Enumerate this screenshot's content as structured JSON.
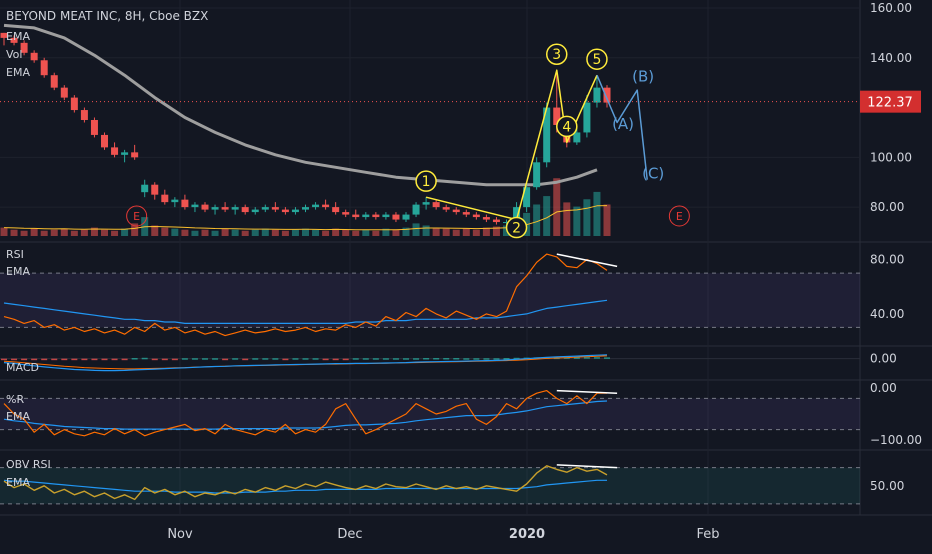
{
  "symbol_title": "BEYOND MEAT INC, 8H, Cboe BZX",
  "legend": {
    "main": [
      "EMA",
      "Vol",
      "EMA"
    ],
    "rsi": [
      "RSI",
      "EMA"
    ],
    "macd": [
      "MACD"
    ],
    "wr": [
      "%R",
      "EMA"
    ],
    "obv": [
      "OBV RSI",
      "EMA"
    ]
  },
  "price_badge": "122.37",
  "earnings_marker": "E",
  "colors": {
    "background": "#131722",
    "up": "#26a69a",
    "down": "#ef5350",
    "ema_grey": "#9e9e9e",
    "wave_yellow": "#ffeb3b",
    "wave_blue": "#5b9bd5",
    "rsi_orange": "#ff6d00",
    "ema_blue": "#2196f3",
    "obv_gold": "#c8a02c",
    "badge_red": "#d32f2f",
    "earnings_red": "#e53935"
  },
  "chart_data": [
    {
      "type": "candlestick",
      "title": "BEYOND MEAT INC, 8H, Cboe BZX",
      "x_ticks": [
        "Nov",
        "Dec",
        "2020",
        "Feb"
      ],
      "y_ticks": [
        "160.00",
        "140.00",
        "100.00",
        "80.00"
      ],
      "ylim": [
        70,
        160
      ],
      "last_price": 122.37,
      "wave_labels": [
        {
          "label": "1",
          "x": 42,
          "y": 84
        },
        {
          "label": "2",
          "x": 51,
          "y": 75
        },
        {
          "label": "3",
          "x": 55,
          "y": 135
        },
        {
          "label": "4",
          "x": 56,
          "y": 106
        },
        {
          "label": "5",
          "x": 59,
          "y": 133
        },
        {
          "label": "(A)",
          "x": 61,
          "y": 109
        },
        {
          "label": "(B)",
          "x": 63,
          "y": 128
        },
        {
          "label": "(C)",
          "x": 64,
          "y": 89
        }
      ],
      "wave_path": [
        [
          42,
          84
        ],
        [
          51,
          75
        ],
        [
          55,
          135
        ],
        [
          56,
          106
        ],
        [
          59,
          133
        ]
      ],
      "projection_path": [
        [
          59,
          133
        ],
        [
          61,
          114
        ],
        [
          63,
          127
        ],
        [
          64,
          91
        ]
      ],
      "earnings_x": [
        13,
        67
      ],
      "ema_200": [
        [
          0,
          153
        ],
        [
          3,
          152
        ],
        [
          6,
          148
        ],
        [
          9,
          141
        ],
        [
          12,
          133
        ],
        [
          15,
          124
        ],
        [
          18,
          116
        ],
        [
          21,
          110
        ],
        [
          24,
          105
        ],
        [
          27,
          101
        ],
        [
          30,
          98
        ],
        [
          33,
          96
        ],
        [
          36,
          94
        ],
        [
          39,
          92
        ],
        [
          42,
          91
        ],
        [
          45,
          90
        ],
        [
          48,
          89
        ],
        [
          51,
          89
        ],
        [
          53,
          89
        ],
        [
          55,
          90
        ],
        [
          57,
          92
        ],
        [
          59,
          95
        ]
      ],
      "candles": [
        [
          150,
          150,
          145,
          148
        ],
        [
          148,
          149,
          145,
          146
        ],
        [
          146,
          147,
          141,
          142
        ],
        [
          142,
          143,
          138,
          139
        ],
        [
          139,
          140,
          132,
          133
        ],
        [
          133,
          134,
          127,
          128
        ],
        [
          128,
          129,
          123,
          124
        ],
        [
          124,
          125,
          118,
          119
        ],
        [
          119,
          120,
          114,
          115
        ],
        [
          115,
          116,
          108,
          109
        ],
        [
          109,
          110,
          103,
          104
        ],
        [
          104,
          106,
          100,
          101
        ],
        [
          101,
          103,
          98,
          102
        ],
        [
          102,
          105,
          99,
          100
        ],
        [
          86,
          91,
          84,
          89
        ],
        [
          89,
          90,
          83,
          85
        ],
        [
          85,
          87,
          81,
          82
        ],
        [
          82,
          84,
          80,
          83
        ],
        [
          83,
          85,
          79,
          80
        ],
        [
          80,
          82,
          78,
          81
        ],
        [
          81,
          82,
          78,
          79
        ],
        [
          79,
          81,
          77,
          80
        ],
        [
          80,
          82,
          78,
          79
        ],
        [
          79,
          81,
          77,
          80
        ],
        [
          80,
          81,
          77,
          78
        ],
        [
          78,
          80,
          77,
          79
        ],
        [
          79,
          81,
          78,
          80
        ],
        [
          80,
          82,
          78,
          79
        ],
        [
          79,
          80,
          77,
          78
        ],
        [
          78,
          80,
          77,
          79
        ],
        [
          79,
          81,
          78,
          80
        ],
        [
          80,
          82,
          79,
          81
        ],
        [
          81,
          83,
          79,
          80
        ],
        [
          80,
          82,
          77,
          78
        ],
        [
          78,
          79,
          76,
          77
        ],
        [
          77,
          79,
          75,
          76
        ],
        [
          76,
          78,
          75,
          77
        ],
        [
          77,
          78,
          75,
          76
        ],
        [
          76,
          78,
          75,
          77
        ],
        [
          77,
          78,
          74,
          75
        ],
        [
          75,
          78,
          74,
          77
        ],
        [
          77,
          82,
          76,
          81
        ],
        [
          81,
          84,
          79,
          82
        ],
        [
          82,
          83,
          79,
          80
        ],
        [
          80,
          81,
          78,
          79
        ],
        [
          79,
          80,
          77,
          78
        ],
        [
          78,
          79,
          76,
          77
        ],
        [
          77,
          78,
          75,
          76
        ],
        [
          76,
          77,
          74,
          75
        ],
        [
          75,
          76,
          73,
          74
        ],
        [
          74,
          75,
          72,
          74
        ],
        [
          74,
          82,
          73,
          80
        ],
        [
          80,
          90,
          78,
          88
        ],
        [
          88,
          100,
          87,
          98
        ],
        [
          98,
          122,
          96,
          120
        ],
        [
          120,
          135,
          110,
          113
        ],
        [
          113,
          114,
          104,
          106
        ],
        [
          106,
          112,
          105,
          110
        ],
        [
          110,
          125,
          108,
          122
        ],
        [
          122,
          133,
          120,
          128
        ],
        [
          128,
          129,
          120,
          122
        ]
      ],
      "volume": [
        8,
        6,
        5,
        7,
        5,
        6,
        7,
        5,
        6,
        8,
        6,
        5,
        7,
        12,
        18,
        10,
        8,
        7,
        6,
        5,
        6,
        5,
        7,
        6,
        5,
        6,
        7,
        6,
        5,
        6,
        7,
        6,
        5,
        7,
        6,
        5,
        6,
        5,
        7,
        6,
        8,
        12,
        10,
        8,
        7,
        6,
        7,
        6,
        8,
        9,
        10,
        14,
        22,
        30,
        38,
        55,
        32,
        28,
        35,
        42,
        30
      ]
    },
    {
      "type": "line",
      "title": "RSI",
      "y_ticks": [
        "80.00",
        "40.00"
      ],
      "ylim": [
        20,
        90
      ],
      "levels": [
        70,
        30
      ],
      "series": [
        {
          "name": "RSI",
          "values": [
            38,
            36,
            33,
            35,
            30,
            32,
            28,
            30,
            27,
            29,
            26,
            28,
            25,
            30,
            27,
            33,
            28,
            30,
            26,
            28,
            25,
            27,
            24,
            26,
            28,
            26,
            27,
            29,
            27,
            28,
            30,
            27,
            29,
            28,
            32,
            30,
            34,
            31,
            38,
            35,
            41,
            38,
            44,
            40,
            37,
            42,
            39,
            36,
            40,
            38,
            42,
            60,
            68,
            78,
            84,
            82,
            75,
            74,
            80,
            77,
            72
          ]
        },
        {
          "name": "EMA",
          "values": [
            48,
            47,
            46,
            45,
            44,
            43,
            42,
            41,
            40,
            39,
            38,
            37,
            36,
            36,
            35,
            35,
            34,
            34,
            33,
            33,
            33,
            33,
            33,
            33,
            33,
            33,
            33,
            33,
            33,
            33,
            33,
            33,
            33,
            33,
            33,
            34,
            34,
            34,
            35,
            35,
            35,
            36,
            36,
            36,
            36,
            36,
            36,
            37,
            37,
            37,
            38,
            39,
            40,
            42,
            44,
            45,
            46,
            47,
            48,
            49,
            50
          ]
        }
      ],
      "divergence_line": [
        [
          55,
          84
        ],
        [
          61,
          75
        ]
      ]
    },
    {
      "type": "histogram",
      "title": "MACD",
      "y_ticks": [
        "0.00"
      ],
      "ylim": [
        -8,
        4
      ],
      "histogram": [
        -0.6,
        -0.5,
        -0.6,
        -0.5,
        -0.4,
        -0.5,
        -0.4,
        -0.3,
        -0.4,
        -0.3,
        -0.2,
        -0.3,
        -0.2,
        0.3,
        0.4,
        -0.2,
        -0.3,
        -0.4,
        0.2,
        0.2,
        0.2,
        0.2,
        -0.2,
        0.2,
        -0.2,
        0.2,
        0.2,
        0.2,
        -0.2,
        0.2,
        0.2,
        0.2,
        -0.2,
        -0.2,
        -0.2,
        0.2,
        0.2,
        0.2,
        0.2,
        0.2,
        0.2,
        0.2,
        0.3,
        0.3,
        0.3,
        0.3,
        0.2,
        0.2,
        0.2,
        0.2,
        0.3,
        0.4,
        0.5,
        0.6,
        0.6,
        0.5,
        0.6,
        0.6,
        0.7,
        0.7,
        0.6
      ],
      "macd": [
        -1.8,
        -2.2,
        -2.8,
        -3.3,
        -3.8,
        -4.2,
        -4.6,
        -5.0,
        -5.2,
        -5.4,
        -5.5,
        -5.5,
        -5.4,
        -5.2,
        -5.0,
        -4.8,
        -4.6,
        -4.4,
        -4.2,
        -4.0,
        -3.8,
        -3.6,
        -3.5,
        -3.3,
        -3.2,
        -3.1,
        -3.0,
        -2.9,
        -2.8,
        -2.7,
        -2.6,
        -2.5,
        -2.4,
        -2.3,
        -2.3,
        -2.2,
        -2.2,
        -2.1,
        -2.0,
        -1.9,
        -1.8,
        -1.6,
        -1.5,
        -1.4,
        -1.3,
        -1.2,
        -1.1,
        -1.0,
        -0.9,
        -0.8,
        -0.6,
        -0.3,
        0.0,
        0.3,
        0.6,
        0.8,
        1.0,
        1.2,
        1.4,
        1.6,
        1.8
      ],
      "signal": [
        -1.2,
        -1.5,
        -1.9,
        -2.3,
        -2.7,
        -3.1,
        -3.5,
        -3.8,
        -4.1,
        -4.3,
        -4.5,
        -4.6,
        -4.7,
        -4.7,
        -4.6,
        -4.5,
        -4.4,
        -4.2,
        -4.1,
        -3.9,
        -3.8,
        -3.6,
        -3.5,
        -3.4,
        -3.3,
        -3.2,
        -3.1,
        -3.0,
        -2.9,
        -2.8,
        -2.7,
        -2.6,
        -2.5,
        -2.5,
        -2.4,
        -2.3,
        -2.3,
        -2.2,
        -2.1,
        -2.0,
        -1.9,
        -1.8,
        -1.7,
        -1.6,
        -1.5,
        -1.4,
        -1.3,
        -1.2,
        -1.1,
        -1.0,
        -0.9,
        -0.7,
        -0.5,
        -0.2,
        0.1,
        0.3,
        0.5,
        0.7,
        0.9,
        1.1,
        1.3
      ]
    },
    {
      "type": "line",
      "title": "%R",
      "y_ticks": [
        "0.00",
        "−100.00"
      ],
      "ylim": [
        -100,
        0
      ],
      "levels": [
        -20,
        -80
      ],
      "series": [
        {
          "name": "%R",
          "values": [
            -30,
            -50,
            -60,
            -85,
            -70,
            -90,
            -80,
            -88,
            -92,
            -85,
            -90,
            -78,
            -88,
            -80,
            -92,
            -85,
            -80,
            -75,
            -70,
            -82,
            -78,
            -88,
            -70,
            -80,
            -85,
            -90,
            -80,
            -85,
            -70,
            -88,
            -80,
            -85,
            -70,
            -40,
            -30,
            -60,
            -88,
            -80,
            -70,
            -60,
            -50,
            -30,
            -40,
            -50,
            -45,
            -35,
            -30,
            -60,
            -70,
            -55,
            -30,
            -40,
            -20,
            -10,
            -5,
            -20,
            -30,
            -15,
            -30,
            -10,
            -10
          ]
        },
        {
          "name": "EMA",
          "values": [
            -60,
            -63,
            -65,
            -68,
            -70,
            -72,
            -74,
            -75,
            -76,
            -77,
            -78,
            -78,
            -79,
            -79,
            -79,
            -79,
            -79,
            -79,
            -79,
            -79,
            -79,
            -79,
            -78,
            -78,
            -78,
            -78,
            -78,
            -78,
            -77,
            -77,
            -77,
            -77,
            -76,
            -74,
            -72,
            -71,
            -71,
            -70,
            -69,
            -68,
            -66,
            -63,
            -61,
            -59,
            -57,
            -55,
            -53,
            -53,
            -53,
            -52,
            -49,
            -47,
            -44,
            -40,
            -36,
            -34,
            -32,
            -30,
            -28,
            -26,
            -25
          ]
        }
      ],
      "divergence_line": [
        [
          55,
          -5
        ],
        [
          61,
          -10
        ]
      ]
    },
    {
      "type": "line",
      "title": "OBV RSI",
      "y_ticks": [
        "50.00"
      ],
      "ylim": [
        20,
        85
      ],
      "levels": [
        70,
        30
      ],
      "series": [
        {
          "name": "OBV RSI",
          "values": [
            55,
            48,
            52,
            45,
            50,
            42,
            46,
            40,
            44,
            38,
            42,
            36,
            40,
            35,
            48,
            42,
            46,
            40,
            44,
            38,
            42,
            40,
            44,
            41,
            46,
            43,
            48,
            45,
            50,
            47,
            52,
            49,
            54,
            51,
            48,
            46,
            50,
            47,
            52,
            49,
            48,
            52,
            49,
            46,
            50,
            47,
            49,
            46,
            50,
            48,
            46,
            44,
            52,
            64,
            72,
            68,
            65,
            70,
            66,
            68,
            62
          ]
        },
        {
          "name": "EMA",
          "values": [
            56,
            55,
            55,
            54,
            53,
            52,
            51,
            50,
            49,
            48,
            47,
            46,
            45,
            44,
            44,
            44,
            44,
            43,
            43,
            43,
            43,
            42,
            42,
            42,
            43,
            43,
            43,
            44,
            44,
            45,
            45,
            45,
            46,
            46,
            46,
            46,
            46,
            46,
            47,
            47,
            47,
            47,
            47,
            47,
            47,
            47,
            47,
            47,
            47,
            47,
            47,
            47,
            48,
            49,
            51,
            52,
            53,
            54,
            55,
            56,
            56
          ]
        }
      ],
      "divergence_line": [
        [
          55,
          73
        ],
        [
          61,
          70
        ]
      ]
    }
  ]
}
